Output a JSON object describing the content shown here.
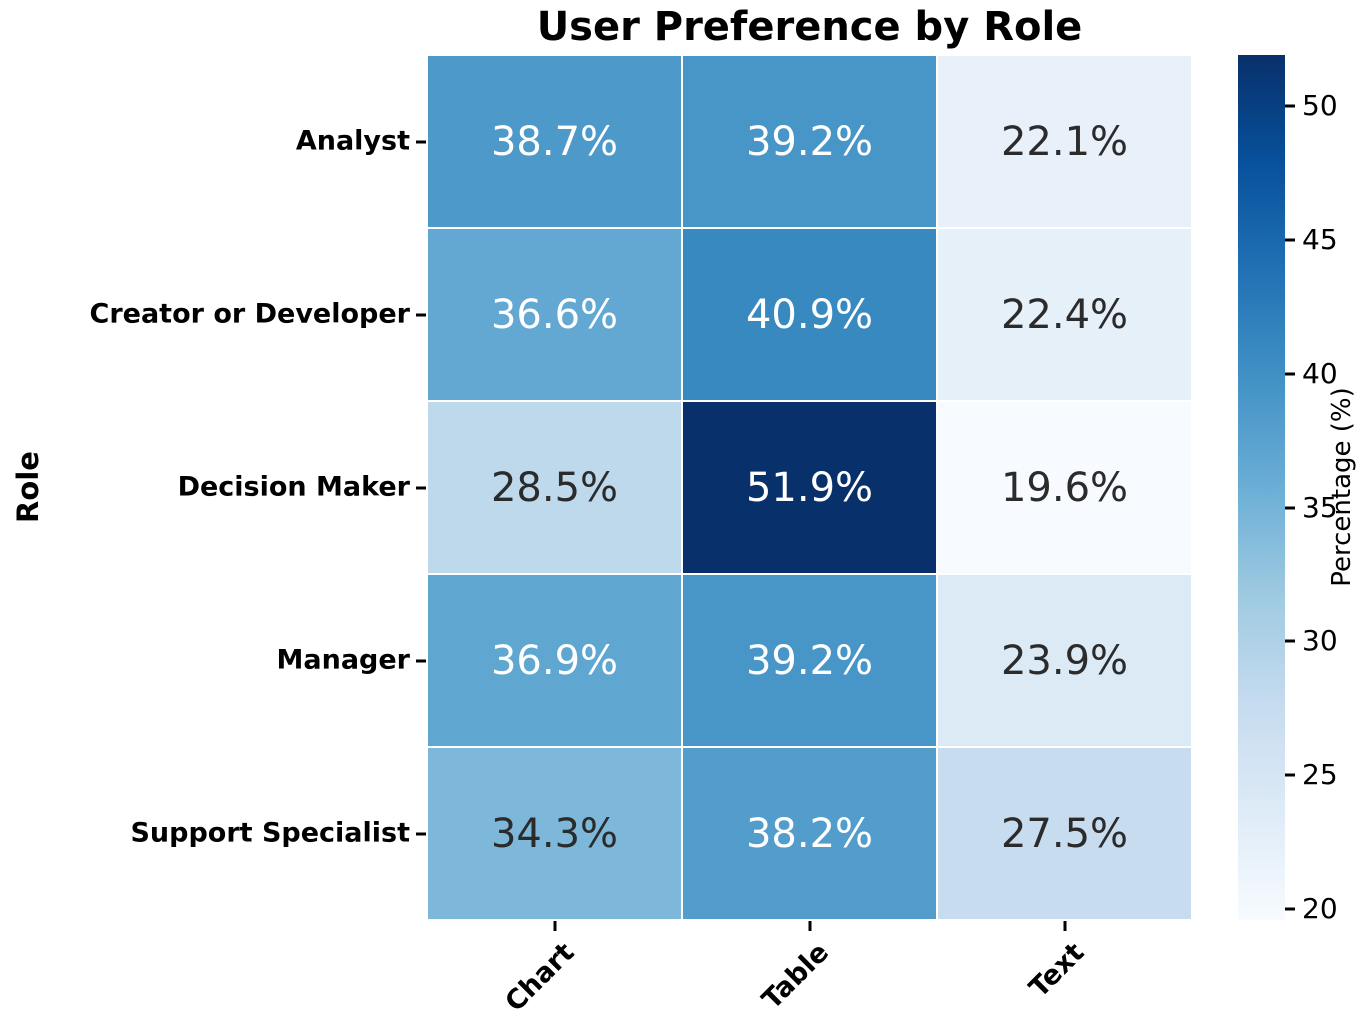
{
  "figure": {
    "background": "#ffffff"
  },
  "chart_data": {
    "type": "heatmap",
    "title": "User Preference by Role",
    "xlabel": "",
    "ylabel": "Role",
    "x_categories": [
      "Chart",
      "Table",
      "Text"
    ],
    "y_categories": [
      "Analyst",
      "Creator or Developer",
      "Decision Maker",
      "Manager",
      "Support Specialist"
    ],
    "values": [
      [
        38.7,
        39.2,
        22.1
      ],
      [
        36.6,
        40.9,
        22.4
      ],
      [
        28.5,
        51.9,
        19.6
      ],
      [
        36.9,
        39.2,
        23.9
      ],
      [
        34.3,
        38.2,
        27.5
      ]
    ],
    "value_suffix": "%",
    "annotations_shown": true,
    "colormap": "Blues",
    "grid_line_color": "#ffffff",
    "annotation_light_color": "#ffffff",
    "annotation_dark_color": "#2b2b2b",
    "colorbar": {
      "label": "Percentage (%)",
      "ticks": [
        20,
        25,
        30,
        35,
        40,
        45,
        50
      ],
      "vmin": 19.6,
      "vmax": 51.9,
      "position": "right"
    },
    "legend": null,
    "grid": false
  }
}
